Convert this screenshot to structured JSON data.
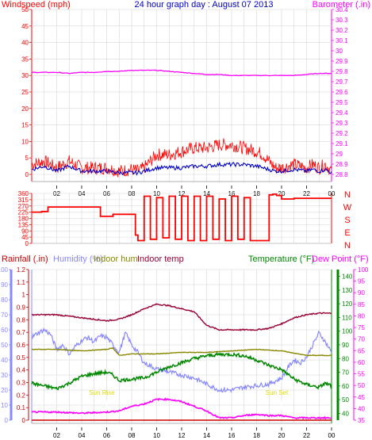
{
  "chart_data": [
    {
      "type": "line",
      "title": "24 hour graph day : August 07 2013",
      "x_ticks": [
        "02",
        "04",
        "06",
        "08",
        "10",
        "12",
        "14",
        "16",
        "18",
        "20",
        "22",
        "00"
      ],
      "left_axis": {
        "label": "Windspeed (mph)",
        "ticks": [
          0,
          5,
          10,
          15,
          20,
          25,
          30,
          35,
          40,
          45,
          50
        ],
        "range": [
          0,
          50
        ]
      },
      "right_axis": {
        "label": "Barometer (.in)",
        "ticks": [
          28.8,
          28.9,
          29,
          29.1,
          29.2,
          29.3,
          29.4,
          29.5,
          29.6,
          29.7,
          29.8,
          29.9,
          30,
          30.1,
          30.2,
          30.3,
          30.4
        ],
        "range": [
          28.8,
          30.4
        ]
      },
      "grid": true,
      "colors": {
        "wind_gust": "#ff0000",
        "wind_avg": "#0000cc",
        "barometer": "#ff00ff",
        "axis_left": "#ff0000",
        "axis_right": "#ff00ff",
        "title": "#0000cc"
      },
      "series": [
        {
          "name": "Windspeed (mph)",
          "axis": "left",
          "color": "#0000cc",
          "x": [
            0,
            1,
            2,
            3,
            4,
            5,
            6,
            7,
            8,
            8.5,
            9,
            9.5,
            10,
            11,
            12,
            13,
            14,
            15,
            16,
            17,
            18,
            18.5,
            19,
            19.5,
            20,
            21,
            22,
            22.5,
            23,
            23.5,
            24
          ],
          "values": [
            1.5,
            2.5,
            1,
            2.5,
            1,
            1,
            1,
            0.5,
            0.5,
            0.5,
            1,
            1.5,
            2,
            2,
            2,
            2.5,
            2.5,
            3,
            3,
            3,
            2.5,
            2,
            1.5,
            1,
            1,
            1.5,
            1,
            1.5,
            1,
            1.5,
            0.5
          ]
        },
        {
          "name": "",
          "axis": "left",
          "color": "#ff0000",
          "x": [
            0,
            1,
            2,
            3,
            4,
            5,
            6,
            7,
            8,
            8.5,
            9,
            9.5,
            10,
            11,
            12,
            13,
            14,
            15,
            16,
            17,
            18,
            18.5,
            19,
            19.5,
            20,
            21,
            22,
            22.5,
            23,
            23.5,
            24
          ],
          "values": [
            3,
            4,
            2,
            4,
            2,
            2,
            2,
            1,
            1.5,
            1,
            2,
            4,
            6,
            6,
            7,
            8,
            8,
            9,
            9,
            8,
            7,
            6,
            4,
            2,
            2,
            3,
            2,
            3,
            2,
            3,
            1
          ]
        },
        {
          "name": "Barometer (.in)",
          "axis": "right",
          "color": "#ff00ff",
          "x": [
            0,
            1,
            2,
            3,
            4,
            5,
            6,
            7,
            8,
            9,
            10,
            11,
            12,
            13,
            14,
            15,
            16,
            17,
            18,
            19,
            20,
            21,
            22,
            23,
            24
          ],
          "values": [
            29.79,
            29.79,
            29.79,
            29.78,
            29.79,
            29.79,
            29.8,
            29.8,
            29.81,
            29.81,
            29.81,
            29.8,
            29.79,
            29.78,
            29.77,
            29.77,
            29.76,
            29.76,
            29.76,
            29.76,
            29.76,
            29.76,
            29.77,
            29.78,
            29.78
          ]
        }
      ]
    },
    {
      "type": "line",
      "left_axis": {
        "ticks": [
          0,
          45,
          90,
          135,
          180,
          225,
          270,
          315,
          360
        ],
        "range": [
          0,
          360
        ]
      },
      "right_axis": {
        "labels": [
          "N",
          "W",
          "S",
          "E",
          "N"
        ]
      },
      "grid": true,
      "colors": {
        "direction": "#ff0000"
      },
      "series": [
        {
          "name": "",
          "color": "#ff0000",
          "x": [
            0,
            0.8,
            1.3,
            2.5,
            3.5,
            4.5,
            5.5,
            6.5,
            7.5,
            8.3,
            8.5,
            9,
            9.5,
            10,
            10.5,
            11,
            11.5,
            12,
            12.5,
            13,
            13.5,
            14,
            14.5,
            15,
            15.5,
            16,
            16.5,
            17,
            17.5,
            18,
            18.5,
            19,
            19.3,
            19.6,
            20,
            21,
            22,
            23,
            24
          ],
          "values": [
            225,
            230,
            262,
            262,
            262,
            262,
            195,
            210,
            210,
            60,
            20,
            340,
            30,
            330,
            40,
            340,
            30,
            340,
            20,
            340,
            20,
            340,
            30,
            320,
            20,
            340,
            30,
            330,
            20,
            20,
            20,
            350,
            355,
            345,
            320,
            325,
            325,
            325,
            325
          ]
        }
      ]
    },
    {
      "type": "line",
      "x_ticks": [
        "02",
        "04",
        "06",
        "08",
        "10",
        "12",
        "14",
        "16",
        "18",
        "20",
        "22",
        "00"
      ],
      "header_labels": [
        {
          "text": "Rainfall (.in)",
          "color": "#cc0000"
        },
        {
          "text": "Humidity (%)",
          "color": "#8888ff"
        },
        {
          "text": "Indoor hum",
          "color": "#888800"
        },
        {
          "text": "Indoor temp",
          "color": "#990033"
        },
        {
          "text": "Temperature (°F)",
          "color": "#008800"
        },
        {
          "text": "Dew Point (°F)",
          "color": "#ff00ff"
        }
      ],
      "axes": {
        "humidity": {
          "ticks": [
            0,
            10,
            20,
            30,
            40,
            50,
            60,
            70,
            80,
            90,
            100
          ],
          "range": [
            0,
            100
          ],
          "color": "#8888ff"
        },
        "rainfall": {
          "ticks": [
            0,
            0.1,
            0.2,
            0.3,
            0.4,
            0.5,
            0.6,
            0.7,
            0.8,
            0.9,
            1,
            1.1,
            1.2
          ],
          "range": [
            0,
            1.2
          ],
          "color": "#cc0000"
        },
        "temperature": {
          "ticks": [
            40,
            50,
            60,
            70,
            80,
            90,
            100,
            110,
            120,
            130,
            140
          ],
          "range": [
            35,
            145
          ],
          "color": "#008800"
        },
        "dew_point": {
          "ticks": [
            35,
            40,
            45,
            50,
            55,
            60,
            65,
            70,
            75,
            80,
            85,
            90,
            95,
            100
          ],
          "range": [
            35,
            100
          ],
          "color": "#ff00ff"
        }
      },
      "annotations": [
        {
          "text": "Sun Rise",
          "x": 6
        },
        {
          "text": "Sun Set",
          "x": 20
        }
      ],
      "grid": true,
      "series": [
        {
          "name": "Indoor temp",
          "axis": "humidity",
          "color": "#990033",
          "x": [
            0,
            2,
            4,
            6,
            7,
            8,
            9,
            10,
            11,
            12,
            13,
            14,
            15,
            16,
            17,
            18,
            19,
            20,
            21,
            22,
            23,
            24
          ],
          "values": [
            70,
            70,
            68,
            66,
            67,
            70,
            74,
            77,
            76,
            74,
            72,
            63,
            60,
            60,
            60,
            60,
            61,
            64,
            68,
            70,
            71,
            71
          ]
        },
        {
          "name": "Humidity (%)",
          "axis": "humidity",
          "color": "#8888ff",
          "x": [
            0,
            0.5,
            1,
            1.5,
            2,
            2.5,
            3,
            3.5,
            4,
            4.5,
            5,
            5.5,
            6,
            6.5,
            7,
            7.5,
            8,
            8.5,
            9,
            10,
            11,
            12,
            13,
            14,
            15,
            16,
            17,
            18,
            19,
            20,
            20.5,
            21,
            21.5,
            22,
            22.5,
            23,
            23.5,
            24
          ],
          "values": [
            55,
            58,
            60,
            57,
            47,
            50,
            44,
            49,
            53,
            55,
            52,
            56,
            55,
            50,
            45,
            58,
            50,
            45,
            38,
            34,
            32,
            30,
            28,
            24,
            20,
            20,
            22,
            23,
            24,
            28,
            35,
            40,
            38,
            42,
            50,
            58,
            52,
            45
          ]
        },
        {
          "name": "Indoor hum",
          "axis": "humidity",
          "color": "#888800",
          "x": [
            0,
            2,
            4,
            6,
            6.5,
            7,
            8,
            10,
            12,
            14,
            16,
            18,
            20,
            22,
            24
          ],
          "values": [
            47,
            47,
            46,
            47,
            48,
            43,
            44,
            44,
            45,
            45,
            46,
            47,
            46,
            43,
            43
          ]
        },
        {
          "name": "Temperature (°F)",
          "axis": "temperature",
          "color": "#008800",
          "x": [
            0,
            1,
            2,
            3,
            4,
            5,
            6,
            6.5,
            7,
            8,
            9,
            10,
            11,
            12,
            13,
            14,
            15,
            16,
            17,
            18,
            19,
            20,
            21,
            22,
            23,
            23.5,
            24
          ],
          "values": [
            62,
            60,
            58,
            62,
            67,
            69,
            70,
            68,
            64,
            65,
            66,
            70,
            74,
            77,
            80,
            82,
            83,
            83,
            82,
            79,
            75,
            72,
            65,
            61,
            59,
            62,
            60
          ]
        },
        {
          "name": "Dew Point (°F)",
          "axis": "dew_point",
          "color": "#ff00ff",
          "x": [
            0,
            2,
            4,
            6,
            7,
            8,
            9,
            10,
            11,
            12,
            13,
            14,
            15,
            16,
            17,
            18,
            19,
            20,
            21,
            22,
            23,
            24
          ],
          "values": [
            38.5,
            38.5,
            38,
            38.5,
            39,
            41,
            42,
            44,
            44,
            43,
            41,
            39,
            36,
            36,
            37,
            37.5,
            37,
            37,
            36,
            36,
            36,
            36
          ]
        },
        {
          "name": "Rainfall (.in)",
          "axis": "rainfall",
          "color": "#cc0000",
          "x": [
            0,
            24
          ],
          "values": [
            0,
            0
          ]
        }
      ]
    }
  ]
}
